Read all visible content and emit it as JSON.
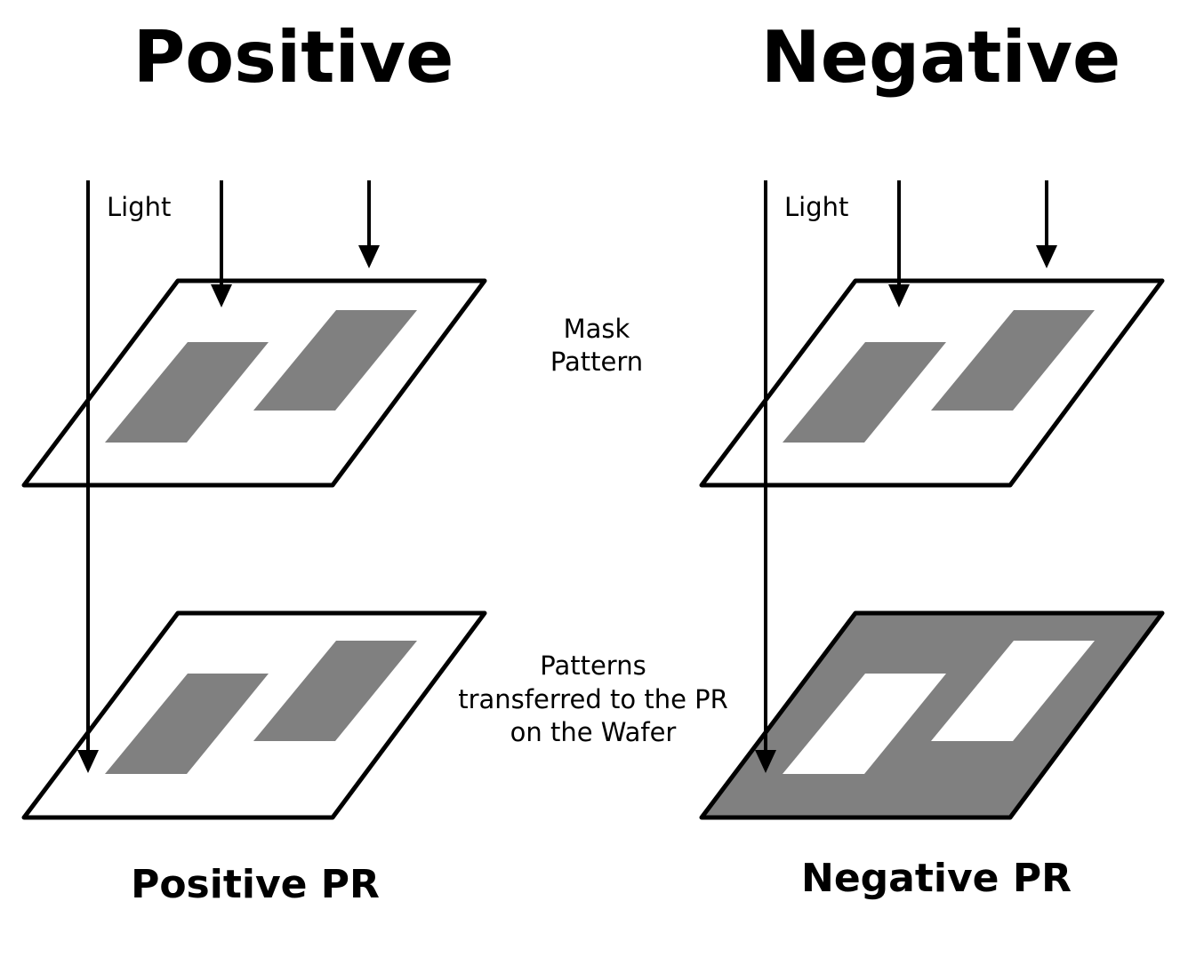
{
  "titles": {
    "positive": "Positive",
    "negative": "Negative"
  },
  "labels": {
    "light_left": "Light",
    "light_right": "Light",
    "mask_pattern_line1": "Mask",
    "mask_pattern_line2": "Pattern",
    "transfer_line1": "Patterns",
    "transfer_line2": "transferred to the PR",
    "transfer_line3": "on the Wafer"
  },
  "captions": {
    "positive_pr": "Positive PR",
    "negative_pr": "Negative PR"
  },
  "colors": {
    "pattern_gray": "#808080",
    "outline": "#000000",
    "background": "#ffffff"
  }
}
